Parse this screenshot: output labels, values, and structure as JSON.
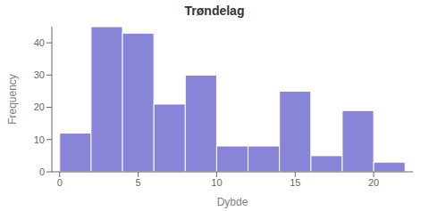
{
  "chart_data": {
    "type": "histogram",
    "title": "Trøndelag",
    "xlabel": "Dybde",
    "ylabel": "Frequency",
    "bins": [
      0,
      2,
      4,
      6,
      8,
      10,
      12,
      14,
      16,
      18,
      20,
      22
    ],
    "values": [
      12,
      45,
      43,
      21,
      30,
      8,
      8,
      25,
      5,
      19,
      3
    ],
    "xlim": [
      -0.5,
      22.5
    ],
    "ylim": [
      0,
      45
    ],
    "xticks": [
      0,
      5,
      10,
      15,
      20
    ],
    "yticks": [
      0,
      10,
      20,
      30,
      40
    ]
  }
}
